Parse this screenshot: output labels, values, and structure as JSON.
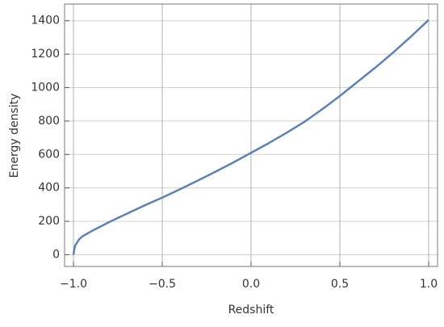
{
  "chart_data": {
    "type": "line",
    "xlabel": "Redshift",
    "ylabel": "Energy density",
    "x": [
      -1.0,
      -0.995,
      -0.99,
      -0.97,
      -0.95,
      -0.9,
      -0.8,
      -0.7,
      -0.6,
      -0.5,
      -0.4,
      -0.3,
      -0.2,
      -0.1,
      0.0,
      0.1,
      0.2,
      0.3,
      0.4,
      0.5,
      0.6,
      0.7,
      0.8,
      0.9,
      1.0
    ],
    "series": [
      {
        "name": "Energy density",
        "color": "#5e81b5",
        "values": [
          0,
          35,
          55,
          90,
          110,
          140,
          195,
          245,
          295,
          342,
          392,
          444,
          497,
          552,
          610,
          668,
          730,
          795,
          870,
          950,
          1035,
          1120,
          1210,
          1305,
          1405
        ]
      }
    ],
    "xlim": [
      -1.05,
      1.05
    ],
    "xticks": [
      {
        "value": -1.0,
        "label": "−1.0"
      },
      {
        "value": -0.5,
        "label": "−0.5"
      },
      {
        "value": 0.0,
        "label": "0.0"
      },
      0.5,
      {
        "value": 1.0,
        "label": "1.0"
      }
    ],
    "ylim": [
      -70,
      1500
    ],
    "yticks": [
      0,
      200,
      400,
      600,
      800,
      1000,
      1200,
      1400
    ],
    "grid": true
  }
}
